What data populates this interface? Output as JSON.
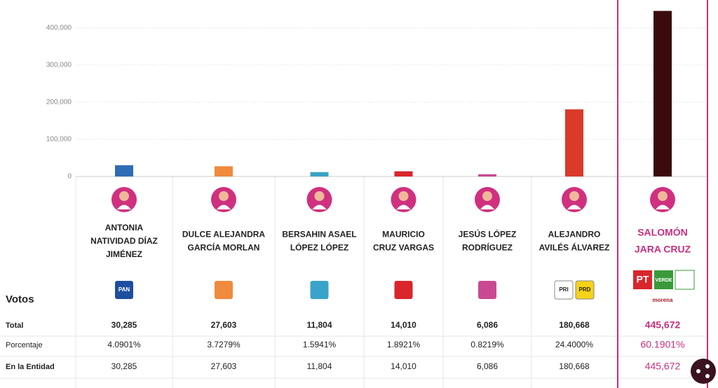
{
  "chart_data": {
    "type": "bar",
    "categories": [
      [
        "ANTONIA",
        "NATIVIDAD DÍAZ",
        "JIMÉNEZ"
      ],
      [
        "DULCE ALEJANDRA",
        "GARCÍA MORLAN"
      ],
      [
        "BERSAHIN ASAEL",
        "LÓPEZ LÓPEZ"
      ],
      [
        "MAURICIO",
        "CRUZ VARGAS"
      ],
      [
        "JESÚS LÓPEZ",
        "RODRÍGUEZ"
      ],
      [
        "ALEJANDRO",
        "AVILÉS ÁLVAREZ"
      ],
      [
        "SALOMÓN",
        "JARA CRUZ"
      ]
    ],
    "values": [
      30285,
      27603,
      11804,
      14010,
      6086,
      180668,
      445672
    ],
    "colors": [
      "#2f6db5",
      "#f08a3c",
      "#3aa3c9",
      "#d8262b",
      "#c94a92",
      "#d93a2a",
      "#3b0a0c"
    ],
    "ylim": [
      0,
      475000
    ],
    "yticks": [
      0,
      {
        "value": 100000,
        "label": "100,000"
      },
      {
        "value": 200000,
        "label": "200,000"
      },
      {
        "value": 300000,
        "label": "300,000"
      },
      {
        "value": 400000,
        "label": "400,000"
      }
    ],
    "grid": true
  },
  "parties": [
    [
      "PAN"
    ],
    [],
    [],
    [],
    [],
    [
      "PRI",
      "PRD"
    ],
    [
      "PT",
      "VERDE",
      "morena"
    ]
  ],
  "table": {
    "header": "Votos",
    "rows": [
      [
        "Total",
        "30,285",
        "27,603",
        "11,804",
        "14,010",
        "6,086",
        "180,668",
        "445,672"
      ],
      [
        "Porcentaje",
        "4.0901%",
        "3.7279%",
        "1.5941%",
        "1.8921%",
        "0.8219%",
        "24.4000%",
        "60.1901%"
      ],
      [
        "En la Entidad",
        "30,285",
        "27,603",
        "11,804",
        "14,010",
        "6,086",
        "180,668",
        "445,672"
      ]
    ]
  }
}
